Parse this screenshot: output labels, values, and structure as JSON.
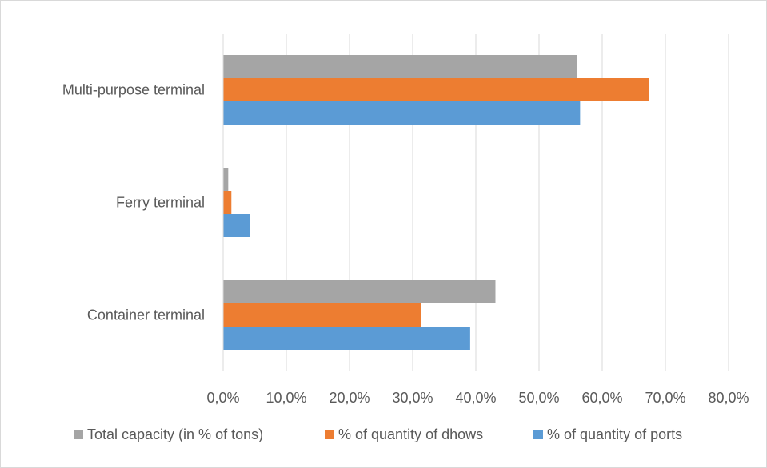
{
  "chart_data": {
    "type": "bar",
    "orientation": "horizontal",
    "categories": [
      "Multi-purpose terminal",
      "Ferry terminal",
      "Container terminal"
    ],
    "series": [
      {
        "name": "Total capacity (in % of tons)",
        "color": "#a5a5a5",
        "values": [
          56.0,
          0.8,
          43.1
        ]
      },
      {
        "name": "% of quantity of dhows",
        "color": "#ed7d31",
        "values": [
          67.4,
          1.3,
          31.3
        ]
      },
      {
        "name": "% of quantity of ports",
        "color": "#5b9bd5",
        "values": [
          56.5,
          4.3,
          39.1
        ]
      }
    ],
    "x_ticks": [
      "0,0%",
      "10,0%",
      "20,0%",
      "30,0%",
      "40,0%",
      "50,0%",
      "60,0%",
      "70,0%",
      "80,0%"
    ],
    "xlim": [
      0,
      80
    ],
    "grid": true,
    "legend_position": "bottom"
  }
}
